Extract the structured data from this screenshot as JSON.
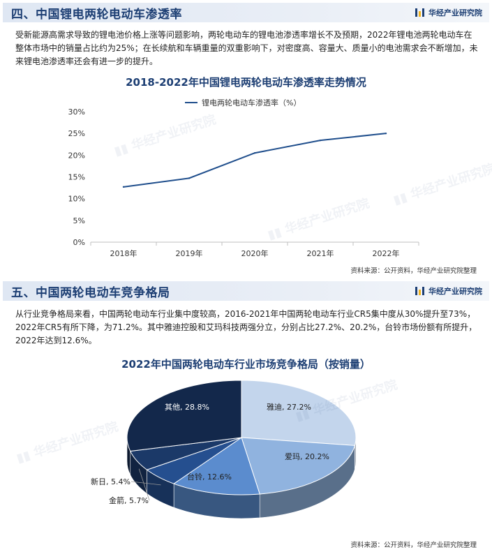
{
  "brand": {
    "name": "华经产业研究院"
  },
  "section4": {
    "title": "四、中国锂电两轮电动车渗透率",
    "paragraph": "受新能源高需求导致的锂电池价格上涨等问题影响，两轮电动车的锂电池渗透率增长不及预期，2022年锂电池两轮电动车在整体市场中的销量占比约为25%；在长续航和车辆重量的双重影响下，对密度高、容量大、质量小的电池需求会不断增加，未来锂电池渗透率还会有进一步的提升。",
    "source": "资料来源：公开资料，华经产业研究院整理"
  },
  "section5": {
    "title": "五、中国两轮电动车竞争格局",
    "paragraph": "从行业竞争格局来看，中国两轮电动车行业集中度较高，2016-2021年中国两轮电动车行业CR5集中度从30%提升至73%，2022年CR5有所下降，为71.2%。其中雅迪控股和艾玛科技两强分立，分别占比27.2%、20.2%，台铃市场份额有所提升，2022年达到12.6%。",
    "source": "资料来源：公开资料，华经产业研究院整理"
  },
  "chart_data": [
    {
      "type": "line",
      "title": "2018-2022年中国锂电两轮电动车渗透率走势情况",
      "categories": [
        "2018年",
        "2019年",
        "2020年",
        "2021年",
        "2022年"
      ],
      "series": [
        {
          "name": "锂电两轮电动车渗透率（%）",
          "values": [
            12.7,
            14.7,
            20.5,
            23.4,
            25.0
          ]
        }
      ],
      "y_ticks": [
        "0%",
        "5%",
        "10%",
        "15%",
        "20%",
        "25%",
        "30%"
      ],
      "ylim": [
        0,
        30
      ],
      "legend": "top-center",
      "color": "#1f4e8c",
      "grid": false
    },
    {
      "type": "pie",
      "title": "2022年中国两轮电动车行业市场竞争格局（按销量）",
      "slices": [
        {
          "label": "雅迪, 27.2%",
          "value": 27.2,
          "color": "#c3d5ec"
        },
        {
          "label": "爱玛, 20.2%",
          "value": 20.2,
          "color": "#90b3df"
        },
        {
          "label": "台铃, 12.6%",
          "value": 12.6,
          "color": "#5b8cce"
        },
        {
          "label": "新日, 5.4%",
          "value": 5.4,
          "color": "#254f8f"
        },
        {
          "label": "金箭, 5.7%",
          "value": 5.7,
          "color": "#1b3968"
        },
        {
          "label": "其他, 28.8%",
          "value": 28.8,
          "color": "#13284b"
        }
      ],
      "style": "3d"
    }
  ]
}
